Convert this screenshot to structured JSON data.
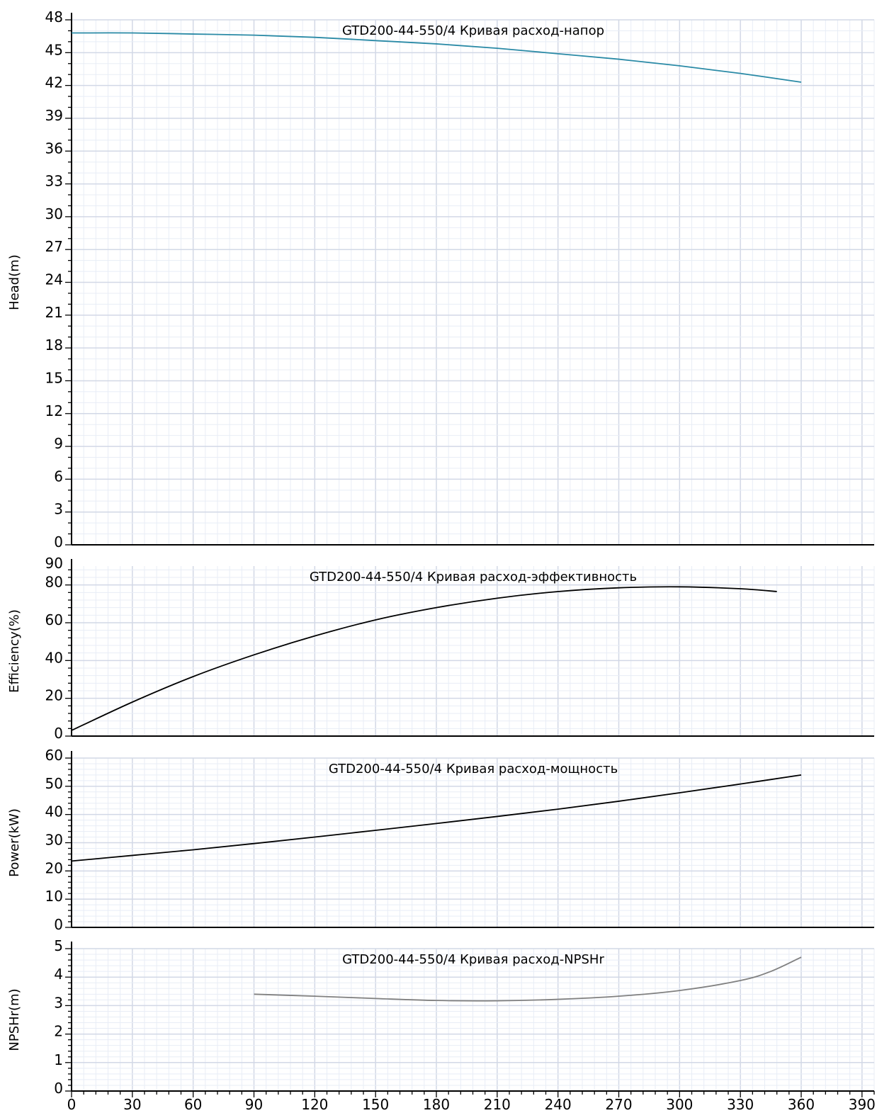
{
  "colors": {
    "head_curve": "#2a8aa6",
    "efficiency_curve": "#000000",
    "power_curve": "#000000",
    "npsh_curve": "#808080",
    "grid_minor": "#e8edf6",
    "grid_major": "#d2d8e6",
    "axis": "#000000"
  },
  "x_axis": {
    "ticks": [
      "0",
      "30",
      "60",
      "90",
      "120",
      "150",
      "180",
      "210",
      "240",
      "270",
      "300",
      "330",
      "360",
      "390"
    ],
    "range": [
      0,
      396
    ]
  },
  "chart_data": [
    {
      "type": "line",
      "title": "GTD200-44-550/4 Кривая расход-напор",
      "ylabel": "Head(m)",
      "xlim": [
        0,
        396
      ],
      "ylim": [
        0,
        48
      ],
      "y_ticks": [
        "0",
        "3",
        "6",
        "9",
        "12",
        "15",
        "18",
        "21",
        "24",
        "27",
        "30",
        "33",
        "36",
        "39",
        "42",
        "45",
        "48"
      ],
      "series": [
        {
          "color": "#2a8aa6",
          "x": [
            0,
            30,
            60,
            90,
            120,
            150,
            180,
            210,
            240,
            270,
            300,
            330,
            360
          ],
          "y": [
            46.8,
            46.8,
            46.7,
            46.6,
            46.4,
            46.1,
            45.8,
            45.4,
            44.9,
            44.4,
            43.8,
            43.1,
            42.3
          ]
        }
      ]
    },
    {
      "type": "line",
      "title": "GTD200-44-550/4 Кривая расход-эффективность",
      "ylabel": "Efficiency(%)",
      "xlim": [
        0,
        396
      ],
      "ylim": [
        0,
        90
      ],
      "y_ticks": [
        "0",
        "20",
        "40",
        "60",
        "80",
        "90"
      ],
      "series": [
        {
          "color": "#000000",
          "x": [
            0,
            30,
            60,
            90,
            120,
            150,
            180,
            210,
            240,
            270,
            300,
            330,
            348
          ],
          "y": [
            3,
            18,
            31.5,
            43,
            53,
            61.5,
            68,
            73,
            76.5,
            78.5,
            79,
            78,
            76.5
          ]
        }
      ]
    },
    {
      "type": "line",
      "title": "GTD200-44-550/4 Кривая расход-мощность",
      "ylabel": "Power(kW)",
      "xlim": [
        0,
        396
      ],
      "ylim": [
        0,
        60
      ],
      "y_ticks": [
        "0",
        "10",
        "20",
        "30",
        "40",
        "50",
        "60"
      ],
      "series": [
        {
          "color": "#000000",
          "x": [
            0,
            30,
            60,
            90,
            120,
            150,
            180,
            210,
            240,
            270,
            300,
            330,
            360
          ],
          "y": [
            23.5,
            25.5,
            27.5,
            29.7,
            32,
            34.4,
            36.8,
            39.3,
            41.9,
            44.7,
            47.7,
            50.8,
            54
          ]
        }
      ]
    },
    {
      "type": "line",
      "title": "GTD200-44-550/4 Кривая расход-NPSHr",
      "ylabel": "NPSHr(m)",
      "xlim": [
        0,
        396
      ],
      "ylim": [
        0,
        5
      ],
      "y_ticks": [
        "0",
        "1",
        "2",
        "3",
        "4",
        "5"
      ],
      "series": [
        {
          "color": "#808080",
          "x": [
            90,
            120,
            150,
            180,
            210,
            240,
            270,
            300,
            330,
            345,
            360
          ],
          "y": [
            3.4,
            3.33,
            3.25,
            3.18,
            3.17,
            3.22,
            3.33,
            3.53,
            3.88,
            4.2,
            4.7
          ]
        }
      ]
    }
  ]
}
